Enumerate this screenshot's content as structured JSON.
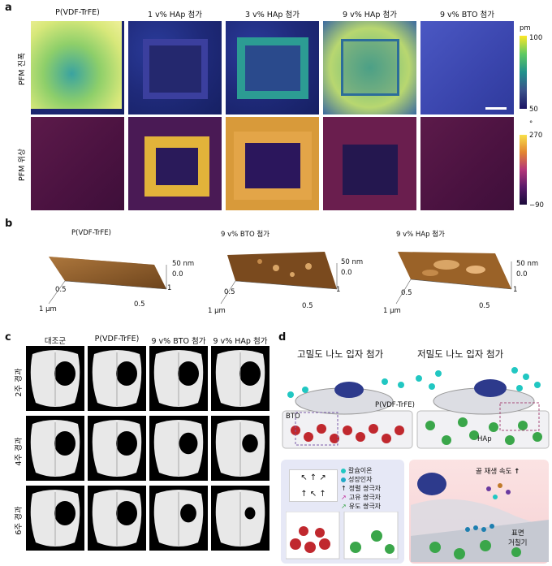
{
  "panel_a": {
    "label": "a",
    "columns": [
      "P(VDF-TrFE)",
      "1 v% HAp 첨가",
      "3 v% HAp 첨가",
      "9 v% HAp 첨가",
      "9 v% BTO 첨가"
    ],
    "row_amp": "PFM 진폭",
    "row_phase": "PFM 위상",
    "amp_unit": "pm",
    "amp_max": "100",
    "amp_min": "50",
    "phase_unit": "°",
    "phase_max": "270",
    "phase_min": "−90"
  },
  "panel_b": {
    "label": "b",
    "titles": [
      "P(VDF-TrFE)",
      "9 v% BTO 첨가",
      "9 v% HAp 첨가"
    ],
    "z_label": "50 nm",
    "z_zero": "0.0",
    "ax_05": "0.5",
    "ax_1": "1",
    "ax_1um": "1 μm"
  },
  "panel_c": {
    "label": "c",
    "columns": [
      "대조군",
      "P(VDF-TrFE)",
      "9 v% BTO 첨가",
      "9 v% HAp 첨가"
    ],
    "rows": [
      "2주 경과",
      "4주 경과",
      "6주 경과"
    ]
  },
  "panel_d": {
    "label": "d",
    "title_left": "고밀도 나노 입자 첨가",
    "title_right": "저밀도 나노 입자 첨가",
    "film_label": "P(VDF-TrFE)",
    "bto_label": "BTO",
    "hap_label": "HAp",
    "legend": [
      "칼슘이온",
      "성장인자",
      "정렬 쌍극자",
      "고유 쌍극자",
      "유도 쌍극자"
    ],
    "bone_rate": "골 재생 속도",
    "surface": "표면",
    "roughness": "거칠기",
    "up_arrow": "↑"
  },
  "colors": {
    "amp_low": "#1b1464",
    "amp_mid": "#21918c",
    "amp_high": "#fde725",
    "phase_low": "#1a0b3a",
    "phase_mid": "#b5367a",
    "phase_high": "#f8e04a",
    "bto_red": "#c0282e",
    "hap_green": "#3aa64a",
    "ion_cyan": "#21c7c2"
  }
}
